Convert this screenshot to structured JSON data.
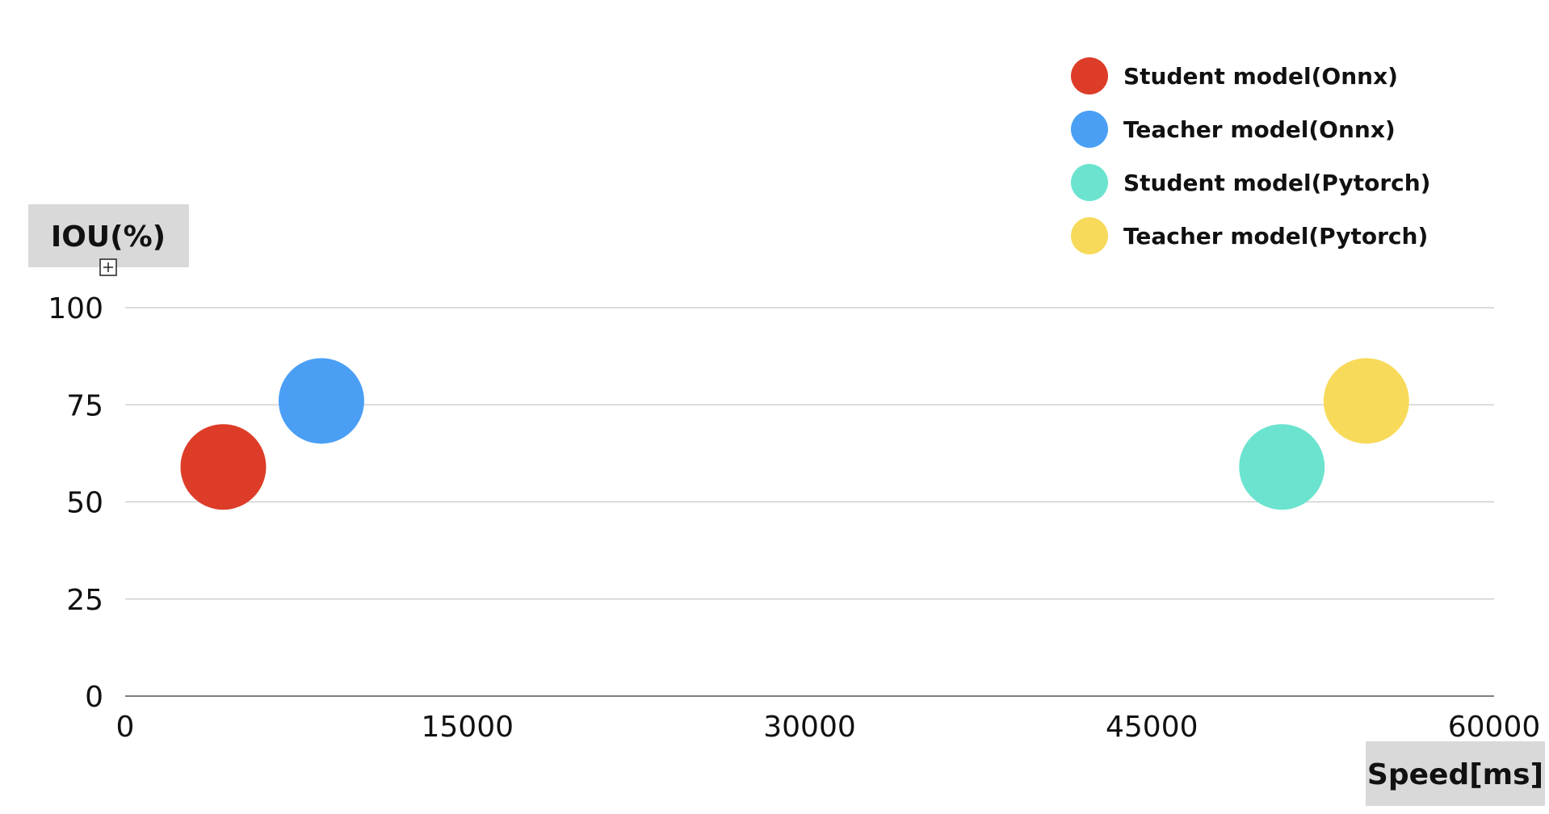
{
  "chart_data": {
    "type": "scatter",
    "xlabel": "Speed[ms]",
    "ylabel": "IOU(%)",
    "xlim": [
      0,
      60000
    ],
    "ylim": [
      0,
      100
    ],
    "x_ticks": [
      0,
      15000,
      30000,
      45000,
      60000
    ],
    "y_ticks": [
      0,
      25,
      50,
      75,
      100
    ],
    "grid": true,
    "legend_position": "top-right",
    "series": [
      {
        "name": "Student model(Onnx)",
        "color": "#dc3c28",
        "points": [
          {
            "x": 4300,
            "y": 59
          }
        ]
      },
      {
        "name": "Teacher model(Onnx)",
        "color": "#4a9ff5",
        "points": [
          {
            "x": 8600,
            "y": 76
          }
        ]
      },
      {
        "name": "Student model(Pytorch)",
        "color": "#6be3cf",
        "points": [
          {
            "x": 50700,
            "y": 59
          }
        ]
      },
      {
        "name": "Teacher model(Pytorch)",
        "color": "#f8da5a",
        "points": [
          {
            "x": 54400,
            "y": 76
          }
        ]
      }
    ]
  }
}
